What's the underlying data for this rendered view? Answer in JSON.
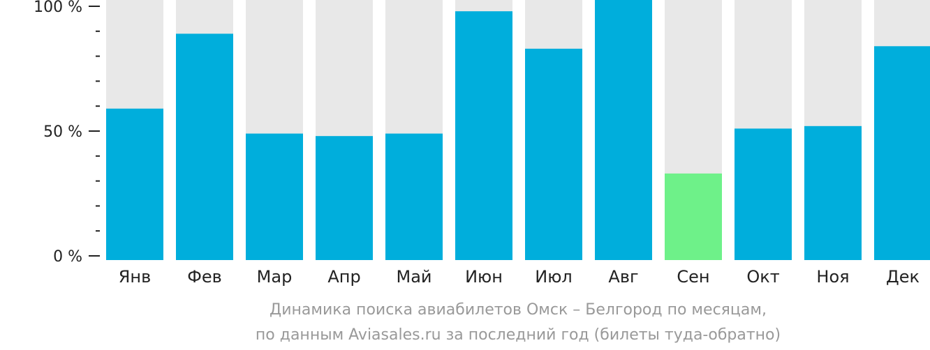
{
  "chart_data": {
    "type": "bar",
    "categories": [
      "Янв",
      "Фев",
      "Мар",
      "Апр",
      "Май",
      "Июн",
      "Июл",
      "Авг",
      "Сен",
      "Окт",
      "Ноя",
      "Дек"
    ],
    "values": [
      59,
      89,
      49,
      48,
      49,
      98,
      83,
      100,
      33,
      51,
      52,
      84
    ],
    "ylim": [
      0,
      100
    ],
    "yticks": [
      {
        "value": 0,
        "label": "0 %"
      },
      {
        "value": 50,
        "label": "50 %"
      },
      {
        "value": 100,
        "label": "100 %"
      }
    ],
    "minor_tick_step": 10,
    "highlight_index": 8,
    "colors": {
      "bar": "#00aedc",
      "highlight": "#6ef189",
      "track": "#e8e8e8",
      "axis": "#222222"
    },
    "caption_line1": "Динамика поиска авиабилетов Омск – Белгород по месяцам,",
    "caption_line2": "по данным Aviasales.ru за последний год (билеты туда-обратно)"
  }
}
